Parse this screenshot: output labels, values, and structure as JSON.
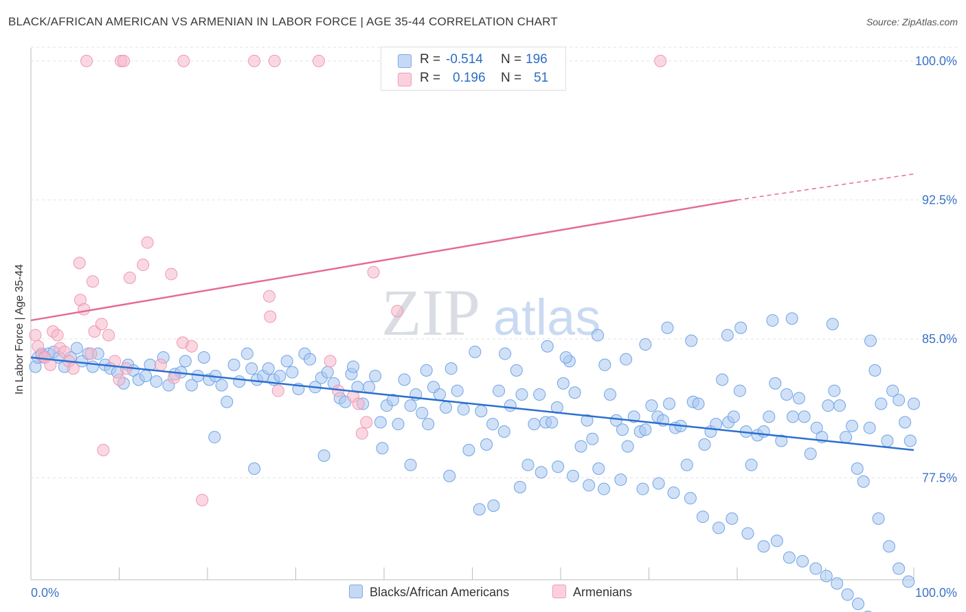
{
  "title": "BLACK/AFRICAN AMERICAN VS ARMENIAN IN LABOR FORCE | AGE 35-44 CORRELATION CHART",
  "source": "Source: ZipAtlas.com",
  "watermark": {
    "zip": "ZIP",
    "atlas": "atlas"
  },
  "legend": {
    "rows": [
      {
        "r_label": "R =",
        "r_value": "-0.514",
        "n_label": "N =",
        "n_value": "196",
        "color": "#a9c8f0"
      },
      {
        "r_label": "R =",
        "r_value": "0.196",
        "n_label": "N =",
        "n_value": "51",
        "color": "#f5b8cb"
      }
    ]
  },
  "bottom_legend": [
    {
      "label": "Blacks/African Americans",
      "color": "#a9c8f0"
    },
    {
      "label": "Armenians",
      "color": "#f5b8cb"
    }
  ],
  "chart_data": {
    "type": "scatter",
    "title": "BLACK/AFRICAN AMERICAN VS ARMENIAN IN LABOR FORCE | AGE 35-44 CORRELATION CHART",
    "xlabel": "",
    "ylabel": "In Labor Force | Age 35-44",
    "xlim": [
      0,
      100
    ],
    "ylim": [
      72.0,
      100.7
    ],
    "x_tick_labels": [
      "0.0%",
      "100.0%"
    ],
    "y_ticks": [
      100.0,
      92.5,
      85.0,
      77.5
    ],
    "y_tick_labels": [
      "100.0%",
      "92.5%",
      "85.0%",
      "77.5%"
    ],
    "grid": true,
    "legend_position": "top-center",
    "series": [
      {
        "name": "Blacks/African Americans",
        "color": "#6fa3e6",
        "fill": "#a9c8f0",
        "trend": {
          "x": [
            0,
            100
          ],
          "y": [
            84.0,
            79.0
          ],
          "color": "#2a6fd0"
        },
        "points": [
          [
            0.5,
            83.5
          ],
          [
            0.8,
            84.0
          ],
          [
            1.2,
            84.2
          ],
          [
            1.5,
            84.0
          ],
          [
            2.0,
            84.2
          ],
          [
            2.6,
            84.3
          ],
          [
            3.2,
            84.0
          ],
          [
            3.8,
            83.5
          ],
          [
            4.5,
            84.0
          ],
          [
            5.2,
            84.5
          ],
          [
            5.8,
            83.8
          ],
          [
            6.5,
            84.2
          ],
          [
            7.0,
            83.5
          ],
          [
            7.6,
            84.2
          ],
          [
            8.4,
            83.6
          ],
          [
            9.0,
            83.4
          ],
          [
            9.8,
            83.2
          ],
          [
            10.5,
            82.6
          ],
          [
            11.0,
            83.6
          ],
          [
            11.6,
            83.3
          ],
          [
            12.2,
            82.8
          ],
          [
            13.0,
            83.0
          ],
          [
            13.5,
            83.6
          ],
          [
            14.2,
            82.7
          ],
          [
            15.0,
            84.0
          ],
          [
            15.6,
            82.5
          ],
          [
            16.3,
            83.1
          ],
          [
            17.0,
            83.2
          ],
          [
            17.5,
            83.8
          ],
          [
            18.2,
            82.5
          ],
          [
            18.9,
            83.0
          ],
          [
            19.6,
            84.0
          ],
          [
            20.2,
            82.8
          ],
          [
            20.9,
            83.0
          ],
          [
            21.6,
            82.5
          ],
          [
            22.2,
            81.6
          ],
          [
            23.0,
            83.6
          ],
          [
            23.6,
            82.7
          ],
          [
            24.5,
            84.2
          ],
          [
            25.0,
            83.4
          ],
          [
            25.6,
            82.8
          ],
          [
            26.3,
            83.0
          ],
          [
            26.9,
            83.4
          ],
          [
            27.5,
            82.8
          ],
          [
            28.2,
            83.0
          ],
          [
            29.0,
            83.8
          ],
          [
            29.6,
            83.2
          ],
          [
            30.3,
            82.3
          ],
          [
            31.0,
            84.2
          ],
          [
            31.6,
            83.9
          ],
          [
            32.2,
            82.4
          ],
          [
            32.9,
            82.9
          ],
          [
            33.6,
            83.2
          ],
          [
            34.3,
            82.6
          ],
          [
            35.0,
            81.8
          ],
          [
            35.6,
            81.6
          ],
          [
            36.3,
            83.1
          ],
          [
            37.0,
            82.4
          ],
          [
            37.6,
            81.5
          ],
          [
            38.3,
            82.4
          ],
          [
            39.0,
            83.0
          ],
          [
            39.6,
            80.5
          ],
          [
            40.3,
            81.4
          ],
          [
            41.0,
            81.7
          ],
          [
            41.6,
            80.4
          ],
          [
            42.3,
            82.8
          ],
          [
            43.0,
            81.4
          ],
          [
            43.6,
            82.0
          ],
          [
            44.3,
            81.0
          ],
          [
            45.0,
            80.4
          ],
          [
            45.6,
            82.4
          ],
          [
            46.3,
            82.0
          ],
          [
            47.0,
            81.3
          ],
          [
            47.6,
            83.4
          ],
          [
            48.3,
            82.2
          ],
          [
            49.0,
            81.2
          ],
          [
            49.6,
            79.0
          ],
          [
            50.3,
            84.3
          ],
          [
            51.0,
            81.1
          ],
          [
            51.6,
            79.3
          ],
          [
            52.3,
            80.4
          ],
          [
            53.0,
            82.2
          ],
          [
            53.6,
            80.0
          ],
          [
            54.3,
            81.4
          ],
          [
            55.0,
            83.3
          ],
          [
            55.6,
            82.0
          ],
          [
            56.3,
            78.2
          ],
          [
            57.0,
            80.4
          ],
          [
            57.6,
            82.0
          ],
          [
            58.3,
            80.5
          ],
          [
            59.0,
            80.5
          ],
          [
            59.6,
            81.3
          ],
          [
            60.3,
            82.6
          ],
          [
            61.0,
            83.8
          ],
          [
            61.6,
            82.1
          ],
          [
            62.3,
            79.2
          ],
          [
            63.0,
            80.6
          ],
          [
            63.6,
            79.6
          ],
          [
            64.3,
            78.0
          ],
          [
            65.0,
            83.6
          ],
          [
            65.6,
            82.0
          ],
          [
            66.3,
            80.6
          ],
          [
            67.0,
            80.1
          ],
          [
            67.6,
            79.2
          ],
          [
            68.3,
            80.8
          ],
          [
            69.0,
            80.0
          ],
          [
            69.6,
            80.1
          ],
          [
            70.3,
            81.4
          ],
          [
            71.0,
            80.8
          ],
          [
            71.6,
            80.6
          ],
          [
            72.3,
            81.5
          ],
          [
            73.0,
            80.2
          ],
          [
            73.6,
            80.3
          ],
          [
            74.3,
            78.2
          ],
          [
            75.0,
            81.6
          ],
          [
            75.6,
            81.5
          ],
          [
            76.3,
            79.3
          ],
          [
            77.0,
            80.0
          ],
          [
            77.6,
            80.4
          ],
          [
            78.3,
            82.8
          ],
          [
            79.0,
            80.5
          ],
          [
            79.6,
            80.8
          ],
          [
            80.3,
            82.2
          ],
          [
            81.0,
            80.0
          ],
          [
            81.6,
            78.2
          ],
          [
            82.3,
            79.8
          ],
          [
            83.0,
            80.0
          ],
          [
            83.6,
            80.8
          ],
          [
            84.3,
            82.6
          ],
          [
            85.0,
            79.5
          ],
          [
            85.6,
            82.0
          ],
          [
            86.3,
            80.8
          ],
          [
            87.0,
            81.8
          ],
          [
            87.6,
            80.8
          ],
          [
            88.3,
            78.8
          ],
          [
            89.0,
            80.2
          ],
          [
            89.6,
            79.7
          ],
          [
            90.3,
            81.4
          ],
          [
            91.0,
            82.2
          ],
          [
            91.6,
            81.4
          ],
          [
            92.3,
            79.7
          ],
          [
            93.0,
            80.3
          ],
          [
            93.6,
            78.0
          ],
          [
            94.3,
            77.3
          ],
          [
            95.0,
            80.2
          ],
          [
            95.6,
            83.3
          ],
          [
            96.3,
            81.5
          ],
          [
            97.0,
            79.5
          ],
          [
            97.6,
            82.2
          ],
          [
            98.3,
            81.7
          ],
          [
            99.0,
            80.5
          ],
          [
            99.6,
            79.5
          ],
          [
            100.0,
            81.5
          ],
          [
            20.8,
            79.7
          ],
          [
            33.2,
            78.7
          ],
          [
            25.3,
            78.0
          ],
          [
            39.8,
            79.1
          ],
          [
            43.0,
            78.2
          ],
          [
            47.4,
            77.6
          ],
          [
            50.8,
            75.8
          ],
          [
            52.4,
            76.0
          ],
          [
            55.4,
            77.0
          ],
          [
            57.8,
            77.8
          ],
          [
            59.7,
            78.1
          ],
          [
            61.4,
            77.6
          ],
          [
            63.2,
            77.1
          ],
          [
            64.9,
            76.9
          ],
          [
            66.8,
            77.4
          ],
          [
            69.3,
            76.9
          ],
          [
            71.1,
            77.2
          ],
          [
            72.8,
            76.7
          ],
          [
            74.7,
            76.4
          ],
          [
            76.1,
            75.4
          ],
          [
            77.9,
            74.8
          ],
          [
            79.4,
            75.3
          ],
          [
            81.2,
            74.5
          ],
          [
            83.0,
            73.8
          ],
          [
            84.5,
            74.1
          ],
          [
            85.9,
            73.2
          ],
          [
            87.4,
            73.0
          ],
          [
            88.9,
            72.6
          ],
          [
            90.1,
            72.2
          ],
          [
            91.3,
            71.8
          ],
          [
            92.5,
            71.2
          ],
          [
            93.7,
            70.7
          ],
          [
            94.8,
            70.0
          ],
          [
            96.0,
            75.3
          ],
          [
            97.2,
            73.8
          ],
          [
            98.3,
            72.6
          ],
          [
            99.4,
            71.9
          ],
          [
            58.5,
            84.6
          ],
          [
            64.2,
            85.2
          ],
          [
            69.6,
            84.7
          ],
          [
            74.8,
            84.9
          ],
          [
            80.4,
            85.6
          ],
          [
            86.2,
            86.1
          ],
          [
            90.8,
            85.8
          ],
          [
            95.1,
            84.9
          ],
          [
            36.5,
            83.5
          ],
          [
            44.8,
            83.3
          ],
          [
            53.7,
            84.2
          ],
          [
            60.6,
            84.0
          ],
          [
            67.4,
            83.9
          ],
          [
            72.1,
            85.6
          ],
          [
            78.9,
            85.2
          ],
          [
            84.0,
            86.0
          ]
        ]
      },
      {
        "name": "Armenians",
        "color": "#ee97b2",
        "fill": "#f5b8cb",
        "trend": {
          "x": [
            0,
            80
          ],
          "y": [
            86.0,
            92.5
          ],
          "dash_to": [
            100,
            93.9
          ],
          "color": "#e56b93"
        },
        "points": [
          [
            0.5,
            85.2
          ],
          [
            0.8,
            84.6
          ],
          [
            1.2,
            84.1
          ],
          [
            1.6,
            84.0
          ],
          [
            2.2,
            83.6
          ],
          [
            2.5,
            85.4
          ],
          [
            3.0,
            85.2
          ],
          [
            3.3,
            84.5
          ],
          [
            3.8,
            84.3
          ],
          [
            4.3,
            83.8
          ],
          [
            4.8,
            83.4
          ],
          [
            5.5,
            89.1
          ],
          [
            5.6,
            87.1
          ],
          [
            6.0,
            86.6
          ],
          [
            6.8,
            84.2
          ],
          [
            7.0,
            88.1
          ],
          [
            7.2,
            85.4
          ],
          [
            8.0,
            85.8
          ],
          [
            8.2,
            79.0
          ],
          [
            8.8,
            85.2
          ],
          [
            9.5,
            83.8
          ],
          [
            10.0,
            82.8
          ],
          [
            10.8,
            83.4
          ],
          [
            11.2,
            88.3
          ],
          [
            12.7,
            89.0
          ],
          [
            13.2,
            90.2
          ],
          [
            14.7,
            83.6
          ],
          [
            15.9,
            88.5
          ],
          [
            16.2,
            82.9
          ],
          [
            17.2,
            84.8
          ],
          [
            18.2,
            84.6
          ],
          [
            19.4,
            76.3
          ],
          [
            27.0,
            87.3
          ],
          [
            27.1,
            86.2
          ],
          [
            28.0,
            82.2
          ],
          [
            33.9,
            83.8
          ],
          [
            34.8,
            82.2
          ],
          [
            36.5,
            81.9
          ],
          [
            37.1,
            81.5
          ],
          [
            37.5,
            79.9
          ],
          [
            38.8,
            88.6
          ],
          [
            41.5,
            86.5
          ],
          [
            38.0,
            80.5
          ],
          [
            6.3,
            100.0
          ],
          [
            10.2,
            100.0
          ],
          [
            10.5,
            100.0
          ],
          [
            17.3,
            100.0
          ],
          [
            25.3,
            100.0
          ],
          [
            27.6,
            100.0
          ],
          [
            32.6,
            100.0
          ],
          [
            71.3,
            100.0
          ]
        ]
      }
    ]
  }
}
